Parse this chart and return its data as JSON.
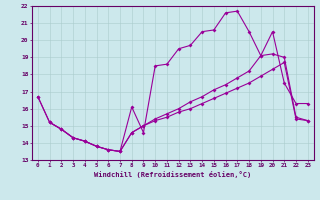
{
  "xlabel": "Windchill (Refroidissement éolien,°C)",
  "bg_color": "#cce8ec",
  "line_color": "#990099",
  "grid_color": "#aacccc",
  "axis_color": "#660066",
  "text_color": "#660066",
  "xlim": [
    -0.5,
    23.5
  ],
  "ylim": [
    13,
    22
  ],
  "yticks": [
    13,
    14,
    15,
    16,
    17,
    18,
    19,
    20,
    21,
    22
  ],
  "xticks": [
    0,
    1,
    2,
    3,
    4,
    5,
    6,
    7,
    8,
    9,
    10,
    11,
    12,
    13,
    14,
    15,
    16,
    17,
    18,
    19,
    20,
    21,
    22,
    23
  ],
  "line1_x": [
    0,
    1,
    2,
    3,
    4,
    5,
    6,
    7,
    8,
    9,
    10,
    11,
    12,
    13,
    14,
    15,
    16,
    17,
    18,
    19,
    20,
    21,
    22,
    23
  ],
  "line1_y": [
    16.7,
    15.2,
    14.8,
    14.3,
    14.1,
    13.8,
    13.6,
    13.5,
    16.1,
    14.6,
    18.5,
    18.6,
    19.5,
    19.7,
    20.5,
    20.6,
    21.6,
    21.7,
    20.5,
    19.1,
    20.5,
    17.5,
    16.3,
    16.3
  ],
  "line2_x": [
    0,
    1,
    2,
    3,
    4,
    5,
    6,
    7,
    8,
    9,
    10,
    11,
    12,
    13,
    14,
    15,
    16,
    17,
    18,
    19,
    20,
    21,
    22,
    23
  ],
  "line2_y": [
    16.7,
    15.2,
    14.8,
    14.3,
    14.1,
    13.8,
    13.6,
    13.5,
    14.6,
    15.0,
    15.4,
    15.7,
    16.0,
    16.4,
    16.7,
    17.1,
    17.4,
    17.8,
    18.2,
    19.1,
    19.2,
    19.0,
    15.5,
    15.3
  ],
  "line3_x": [
    1,
    2,
    3,
    4,
    5,
    6,
    7,
    8,
    9,
    10,
    11,
    12,
    13,
    14,
    15,
    16,
    17,
    18,
    19,
    20,
    21,
    22,
    23
  ],
  "line3_y": [
    15.2,
    14.8,
    14.3,
    14.1,
    13.8,
    13.6,
    13.5,
    14.6,
    15.0,
    15.3,
    15.5,
    15.8,
    16.0,
    16.3,
    16.6,
    16.9,
    17.2,
    17.5,
    17.9,
    18.3,
    18.7,
    15.4,
    15.3
  ]
}
